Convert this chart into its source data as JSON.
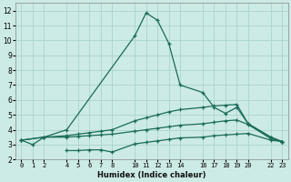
{
  "xlabel": "Humidex (Indice chaleur)",
  "bg_color": "#cceae6",
  "grid_color": "#aad4cf",
  "line_color": "#1a6b5a",
  "line1_x": [
    0,
    1,
    2,
    4,
    10,
    11,
    12,
    13,
    14,
    16,
    17,
    18,
    19,
    20,
    22,
    23
  ],
  "line1_y": [
    3.3,
    3.0,
    3.5,
    4.0,
    10.3,
    11.85,
    11.35,
    9.8,
    7.0,
    6.5,
    5.5,
    5.1,
    5.5,
    4.4,
    3.5,
    3.2
  ],
  "line2_x": [
    0,
    2,
    4,
    5,
    6,
    7,
    8,
    10,
    11,
    12,
    13,
    14,
    16,
    17,
    18,
    19,
    20,
    22,
    23
  ],
  "line2_y": [
    3.3,
    3.5,
    3.6,
    3.7,
    3.8,
    3.9,
    4.0,
    4.6,
    4.8,
    5.0,
    5.2,
    5.35,
    5.5,
    5.6,
    5.65,
    5.7,
    4.4,
    3.5,
    3.2
  ],
  "line3_x": [
    0,
    2,
    4,
    5,
    6,
    7,
    8,
    10,
    11,
    12,
    13,
    14,
    16,
    17,
    18,
    19,
    20,
    22,
    23
  ],
  "line3_y": [
    3.3,
    3.5,
    3.5,
    3.55,
    3.6,
    3.65,
    3.7,
    3.9,
    4.0,
    4.1,
    4.2,
    4.3,
    4.4,
    4.5,
    4.6,
    4.65,
    4.35,
    3.4,
    3.2
  ],
  "line4_x": [
    4,
    5,
    6,
    7,
    8,
    10,
    11,
    12,
    13,
    14,
    16,
    17,
    18,
    19,
    20,
    22,
    23
  ],
  "line4_y": [
    2.6,
    2.6,
    2.65,
    2.65,
    2.5,
    3.05,
    3.15,
    3.25,
    3.35,
    3.45,
    3.5,
    3.6,
    3.65,
    3.7,
    3.75,
    3.3,
    3.2
  ],
  "xlim": [
    -0.5,
    23.5
  ],
  "ylim": [
    2.0,
    12.5
  ],
  "yticks": [
    2,
    3,
    4,
    5,
    6,
    7,
    8,
    9,
    10,
    11,
    12
  ],
  "xtick_positions": [
    0,
    1,
    2,
    4,
    5,
    6,
    7,
    8,
    10,
    11,
    12,
    13,
    14,
    16,
    17,
    18,
    19,
    20,
    22,
    23
  ],
  "xtick_labels": [
    "0",
    "1",
    "2",
    "4",
    "5",
    "6",
    "7",
    "8",
    "10",
    "11",
    "12",
    "13",
    "14",
    "16",
    "17",
    "18",
    "19",
    "20",
    "22",
    "23"
  ]
}
